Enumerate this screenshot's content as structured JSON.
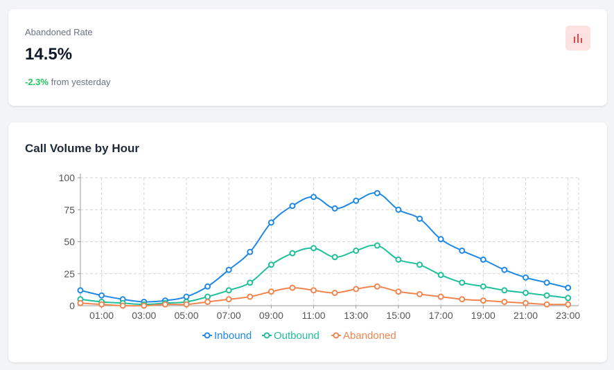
{
  "stat": {
    "label": "Abandoned Rate",
    "value": "14.5%",
    "delta": "-2.3%",
    "delta_suffix": " from yesterday",
    "icon": "bar-chart-icon",
    "icon_color": "#ef4444",
    "delta_color": "#22c55e"
  },
  "chart": {
    "title": "Call Volume by Hour"
  },
  "chart_data": {
    "type": "line",
    "title": "Call Volume by Hour",
    "xlabel": "",
    "ylabel": "",
    "x": [
      "00:00",
      "01:00",
      "02:00",
      "03:00",
      "04:00",
      "05:00",
      "06:00",
      "07:00",
      "08:00",
      "09:00",
      "10:00",
      "11:00",
      "12:00",
      "13:00",
      "14:00",
      "15:00",
      "16:00",
      "17:00",
      "18:00",
      "19:00",
      "20:00",
      "21:00",
      "22:00",
      "23:00"
    ],
    "x_tick_labels": [
      "01:00",
      "03:00",
      "05:00",
      "07:00",
      "09:00",
      "11:00",
      "13:00",
      "15:00",
      "17:00",
      "19:00",
      "21:00",
      "23:00"
    ],
    "ylim": [
      0,
      100
    ],
    "y_ticks": [
      0,
      25,
      50,
      75,
      100
    ],
    "grid": true,
    "legend_position": "bottom",
    "series": [
      {
        "name": "Inbound",
        "color": "#1e88e5",
        "values": [
          12,
          8,
          5,
          3,
          4,
          7,
          15,
          28,
          42,
          65,
          78,
          85,
          76,
          82,
          88,
          75,
          68,
          52,
          43,
          36,
          28,
          22,
          18,
          14
        ]
      },
      {
        "name": "Outbound",
        "color": "#1fbf9a",
        "values": [
          5,
          3,
          2,
          1,
          2,
          3,
          7,
          12,
          18,
          32,
          41,
          45,
          38,
          43,
          47,
          36,
          32,
          24,
          18,
          15,
          12,
          10,
          8,
          6
        ]
      },
      {
        "name": "Abandoned",
        "color": "#f0854f",
        "values": [
          2,
          1,
          0,
          0,
          1,
          1,
          3,
          5,
          7,
          11,
          14,
          12,
          10,
          13,
          15,
          11,
          9,
          7,
          5,
          4,
          3,
          2,
          1,
          1
        ]
      }
    ]
  }
}
